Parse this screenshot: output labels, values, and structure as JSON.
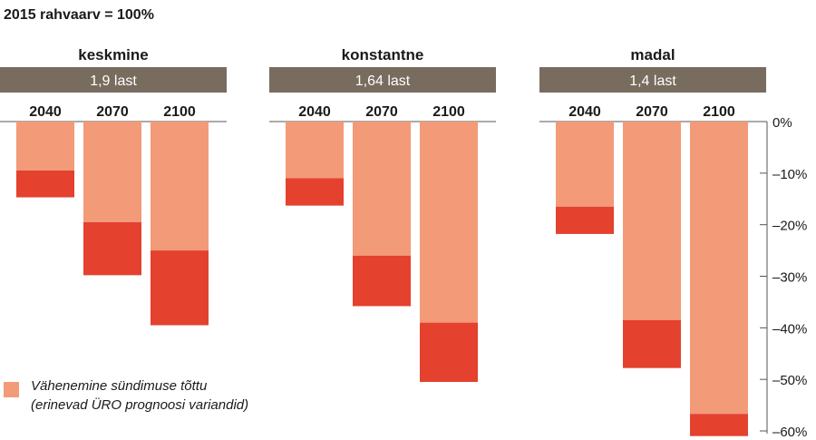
{
  "subtitle": "2015 rahvaarv = 100%",
  "legend": {
    "line1": "Vähenemine sündimuse tõttu",
    "line2": "(erinevad ÜRO prognoosi variandid)"
  },
  "colors": {
    "light": "#f39a78",
    "dark": "#e4412e",
    "header": "#776c5e",
    "axis": "#555555"
  },
  "chart_data": {
    "type": "bar",
    "stacked": true,
    "ylim": [
      -60,
      0
    ],
    "yticks": [
      "0%",
      "–10%",
      "–20%",
      "–30%",
      "–40%",
      "–50%",
      "–60%"
    ],
    "ytick_values": [
      0,
      -10,
      -20,
      -30,
      -40,
      -50,
      -60
    ],
    "categories": [
      "2040",
      "2070",
      "2100"
    ],
    "panels": [
      {
        "name": "keskmine",
        "fertility": "1,9 last",
        "light": [
          -9.5,
          -19.5,
          -25
        ],
        "total": [
          -14.7,
          -29.8,
          -39.5
        ]
      },
      {
        "name": "konstantne",
        "fertility": "1,64 last",
        "light": [
          -11,
          -26,
          -39
        ],
        "total": [
          -16.3,
          -35.8,
          -50.5
        ]
      },
      {
        "name": "madal",
        "fertility": "1,4 last",
        "light": [
          -16.5,
          -38.5,
          -56.7
        ],
        "total": [
          -21.8,
          -47.8,
          -61
        ]
      }
    ]
  }
}
